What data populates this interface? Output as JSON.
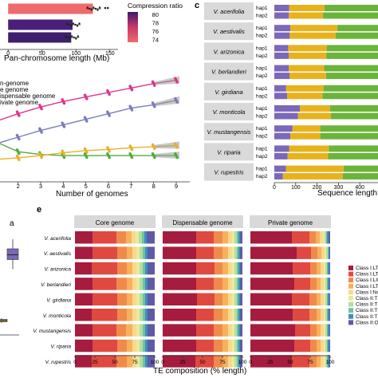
{
  "panel_labels": {
    "c": "c",
    "e": "e"
  },
  "chart_data": [
    {
      "id": "pan_chromosome_bars",
      "type": "bar",
      "orientation": "horizontal",
      "categories": [
        "%",
        "%",
        "%"
      ],
      "values": [
        125,
        95,
        93
      ],
      "xlabel": "Pan-chromosome length (Mb)",
      "x_ticks": [
        "0",
        "50",
        "100",
        "150"
      ],
      "xlim": [
        -12,
        162
      ],
      "color_legend": {
        "title": "Compression ratio",
        "ticks": [
          "80",
          "78",
          "76",
          "74"
        ],
        "low_color": "#f0696b",
        "mid_color": "#c93a6a",
        "high_color": "#3a1a6e"
      },
      "bar_colors": [
        "#ef6a6a",
        "#4a1f7a",
        "#3e1f6d"
      ]
    },
    {
      "id": "pangenome_curves",
      "type": "line",
      "xlabel": "Number of genomes",
      "x_ticks": [
        "2",
        "3",
        "4",
        "5",
        "6",
        "7",
        "8",
        "9"
      ],
      "xlim": [
        1.2,
        9.6
      ],
      "ylim": [
        0,
        1
      ],
      "legend_labels": [
        "n-genome",
        "e genome",
        "ispensable genome",
        "ivate genome"
      ],
      "series": [
        {
          "color": "#e0338a",
          "x": [
            1,
            2,
            3,
            4,
            5,
            6,
            7,
            8,
            9
          ],
          "y": [
            0.54,
            0.61,
            0.67,
            0.72,
            0.76,
            0.8,
            0.84,
            0.88,
            0.91
          ]
        },
        {
          "color": "#7b7bbd",
          "x": [
            1,
            2,
            3,
            4,
            5,
            6,
            7,
            8,
            9
          ],
          "y": [
            0.34,
            0.4,
            0.46,
            0.51,
            0.56,
            0.61,
            0.66,
            0.69,
            0.73
          ]
        },
        {
          "color": "#4caf3c",
          "x": [
            1,
            2,
            3,
            4,
            5,
            6,
            7,
            8,
            9
          ],
          "y": [
            0.36,
            0.27,
            0.245,
            0.235,
            0.235,
            0.235,
            0.235,
            0.235,
            0.235
          ]
        },
        {
          "color": "#e8b12a",
          "x": [
            1,
            2,
            3,
            4,
            5,
            6,
            7,
            8,
            9
          ],
          "y": [
            0.2,
            0.215,
            0.235,
            0.26,
            0.28,
            0.29,
            0.305,
            0.315,
            0.325
          ]
        }
      ]
    },
    {
      "id": "haplotype_sequence_length",
      "type": "bar",
      "orientation": "horizontal",
      "stacked": true,
      "xlabel": "Sequence length (Mb)",
      "x_ticks": [
        "0",
        "100",
        "200",
        "300",
        "400"
      ],
      "xlim": [
        0,
        500
      ],
      "segment_colors": [
        "#7b68b8",
        "#e8b21d",
        "#6bb43a"
      ],
      "genomes": [
        {
          "name": "V. acerifolia",
          "haps": [
            "hap1",
            "hap2"
          ],
          "segments": [
            [
              70,
              165,
              265
            ],
            [
              68,
              160,
              262
            ]
          ]
        },
        {
          "name": "V. aestivalis",
          "haps": [
            "hap1",
            "hap2"
          ],
          "segments": [
            [
              75,
              220,
              215
            ],
            [
              72,
              215,
              215
            ]
          ]
        },
        {
          "name": "V. arizonica",
          "haps": [
            "hap1",
            "hap2"
          ],
          "segments": [
            [
              65,
              180,
              270
            ],
            [
              68,
              175,
              270
            ]
          ]
        },
        {
          "name": "V. berlandieri",
          "haps": [
            "hap1",
            "hap2"
          ],
          "segments": [
            [
              68,
              165,
              270
            ],
            [
              72,
              170,
              268
            ]
          ]
        },
        {
          "name": "V. girdiana",
          "haps": [
            "hap1",
            "hap2"
          ],
          "segments": [
            [
              55,
              175,
              270
            ],
            [
              60,
              165,
              272
            ]
          ]
        },
        {
          "name": "V. monticola",
          "haps": [
            "hap1",
            "hap2"
          ],
          "segments": [
            [
              120,
              140,
              245
            ],
            [
              110,
              155,
              240
            ]
          ]
        },
        {
          "name": "V. mustangensis",
          "haps": [
            "hap1",
            "hap2"
          ],
          "segments": [
            [
              85,
              130,
              285
            ],
            [
              75,
              140,
              290
            ]
          ]
        },
        {
          "name": "V. riparia",
          "haps": [
            "hap1",
            "hap2"
          ],
          "segments": [
            [
              70,
              185,
              245
            ],
            [
              62,
              190,
              250
            ]
          ]
        },
        {
          "name": "V. rupestris",
          "haps": [
            "hap1",
            "hap2"
          ],
          "segments": [
            [
              55,
              270,
              185
            ],
            [
              40,
              280,
              190
            ]
          ]
        }
      ]
    },
    {
      "id": "boxplot_fragment",
      "type": "box",
      "annotation": "a",
      "boxes": [
        {
          "color": "#7b68b8",
          "q1": 0.63,
          "median": 0.67,
          "q3": 0.72,
          "min": 0.55,
          "max": 0.8
        },
        {
          "color": "#b49a38",
          "q1": 0.11,
          "median": 0.12,
          "q3": 0.13,
          "min": 0.1,
          "max": 0.14
        }
      ]
    },
    {
      "id": "te_composition",
      "type": "bar",
      "orientation": "horizontal",
      "stacked": true,
      "xlabel": "TE composition (% length)",
      "x_ticks": [
        "0",
        "25",
        "50",
        "75",
        "100"
      ],
      "xlim": [
        0,
        100
      ],
      "facets": [
        "Core genome",
        "Dispensable genome",
        "Private genome"
      ],
      "categories": [
        "V. acerifolia",
        "V. aestivalis",
        "V. arizonica",
        "V. berlandieri",
        "V. girdiana",
        "V. monticola",
        "V. mustangensis",
        "V. riparia",
        "V. rupestris"
      ],
      "legend_labels": [
        "Class I:LTR",
        "Class I:LTR",
        "Class I:LIN",
        "Class I:LTR",
        "Class I:Non",
        "Class II:TIR",
        "Class II:TIF",
        "Class II:TIF",
        "Class II:TIF",
        "Class II:Oth"
      ],
      "segment_colors": [
        "#a51c3e",
        "#e0493f",
        "#f08a4b",
        "#f7b15c",
        "#fbd88a",
        "#e8ec9e",
        "#b5dea0",
        "#6fc3a4",
        "#3e8fbc",
        "#5f5aa8"
      ],
      "values_by_facet": [
        [
          [
            22,
            30,
            12,
            7,
            5,
            4,
            4,
            3,
            3,
            10
          ],
          [
            22,
            31,
            12,
            7,
            5,
            4,
            4,
            3,
            3,
            9
          ],
          [
            21,
            32,
            12,
            7,
            5,
            4,
            4,
            3,
            3,
            9
          ],
          [
            22,
            30,
            13,
            7,
            5,
            4,
            4,
            3,
            3,
            9
          ],
          [
            22,
            31,
            12,
            7,
            5,
            4,
            4,
            3,
            3,
            9
          ],
          [
            21,
            32,
            12,
            7,
            5,
            4,
            4,
            3,
            3,
            9
          ],
          [
            22,
            30,
            12,
            8,
            5,
            4,
            4,
            3,
            3,
            9
          ],
          [
            22,
            31,
            12,
            7,
            5,
            4,
            4,
            3,
            3,
            9
          ],
          [
            21,
            31,
            13,
            7,
            5,
            4,
            4,
            3,
            3,
            9
          ]
        ],
        [
          [
            42,
            22,
            11,
            7,
            5,
            3,
            3,
            2,
            2,
            3
          ],
          [
            42,
            22,
            11,
            7,
            5,
            3,
            3,
            2,
            2,
            3
          ],
          [
            42,
            23,
            10,
            7,
            5,
            3,
            3,
            2,
            2,
            3
          ],
          [
            42,
            22,
            11,
            7,
            5,
            3,
            3,
            2,
            2,
            3
          ],
          [
            43,
            22,
            10,
            7,
            5,
            3,
            3,
            2,
            2,
            3
          ],
          [
            42,
            22,
            11,
            7,
            5,
            3,
            3,
            2,
            2,
            3
          ],
          [
            42,
            22,
            11,
            7,
            5,
            3,
            3,
            2,
            2,
            3
          ],
          [
            42,
            22,
            11,
            7,
            5,
            3,
            3,
            2,
            2,
            3
          ],
          [
            41,
            23,
            11,
            7,
            5,
            3,
            3,
            2,
            2,
            3
          ]
        ],
        [
          [
            52,
            22,
            8,
            5,
            4,
            2,
            2,
            1,
            2,
            2
          ],
          [
            58,
            18,
            8,
            5,
            4,
            2,
            2,
            1,
            1,
            1
          ],
          [
            53,
            22,
            8,
            5,
            4,
            2,
            2,
            1,
            2,
            1
          ],
          [
            55,
            20,
            8,
            5,
            4,
            2,
            2,
            1,
            2,
            1
          ],
          [
            52,
            22,
            9,
            5,
            4,
            2,
            2,
            1,
            2,
            1
          ],
          [
            53,
            21,
            9,
            5,
            4,
            2,
            2,
            1,
            2,
            1
          ],
          [
            56,
            19,
            8,
            5,
            4,
            2,
            2,
            1,
            2,
            1
          ],
          [
            55,
            20,
            8,
            5,
            4,
            2,
            2,
            1,
            2,
            1
          ],
          [
            52,
            22,
            9,
            5,
            4,
            2,
            2,
            1,
            2,
            1
          ]
        ]
      ]
    }
  ]
}
